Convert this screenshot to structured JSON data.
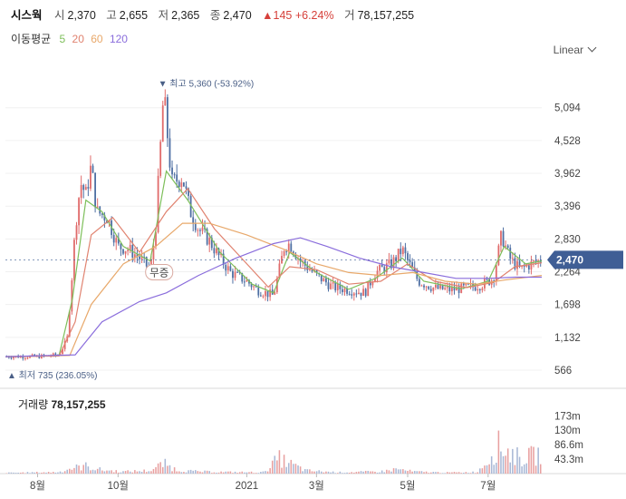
{
  "header": {
    "stock_name": "시스웍",
    "open_label": "시",
    "open": "2,370",
    "high_label": "고",
    "high": "2,655",
    "low_label": "저",
    "low": "2,365",
    "close_label": "종",
    "close": "2,470",
    "change": "▲145 +6.24%",
    "volume_label": "거",
    "volume": "78,157,255"
  },
  "ma_legend": {
    "label": "이동평균",
    "periods": [
      "5",
      "20",
      "60",
      "120"
    ],
    "colors": [
      "#7dbf5a",
      "#e0826f",
      "#e8a86a",
      "#8a6ddc"
    ]
  },
  "scale_selector": {
    "label": "Linear"
  },
  "colors": {
    "up": "#e06b6b",
    "down": "#4e6fa3",
    "current_price_tag": "#3f5e95",
    "volume": "#e8a0a0"
  },
  "chart_data": {
    "type": "candlestick",
    "y_ticks": [
      "5,094",
      "4,528",
      "3,962",
      "3,396",
      "2,830",
      "2,264",
      "1,698",
      "1,132",
      "566"
    ],
    "y_tick_values": [
      5094,
      4528,
      3962,
      3396,
      2830,
      2264,
      1698,
      1132,
      566
    ],
    "ylim": [
      300,
      5700
    ],
    "x_ticks": [
      "8월",
      "10월",
      "2021",
      "3월",
      "5월",
      "7월"
    ],
    "x_tick_positions": [
      0.06,
      0.21,
      0.45,
      0.58,
      0.75,
      0.9
    ],
    "current_price": 2470,
    "current_price_label": "2,470",
    "high_annotation": {
      "text": "최고 5,360 (-53.92%)",
      "value": 5360
    },
    "low_annotation": {
      "text": "최저 735 (236.05%)",
      "value": 735
    },
    "note_label": "무증",
    "volume_ticks": [
      "173m",
      "130m",
      "86.6m",
      "43.3m"
    ],
    "volume_tick_values": [
      173,
      130,
      86.6,
      43.3
    ],
    "volume_label": "거래량",
    "volume_value": "78,157,255",
    "price_path": [
      [
        0.0,
        800
      ],
      [
        0.06,
        800
      ],
      [
        0.1,
        830
      ],
      [
        0.115,
        1100
      ],
      [
        0.125,
        2300
      ],
      [
        0.13,
        3000
      ],
      [
        0.14,
        3800
      ],
      [
        0.15,
        3600
      ],
      [
        0.16,
        4100
      ],
      [
        0.17,
        3300
      ],
      [
        0.19,
        3200
      ],
      [
        0.21,
        2700
      ],
      [
        0.23,
        2650
      ],
      [
        0.25,
        2500
      ],
      [
        0.27,
        2300
      ],
      [
        0.28,
        3000
      ],
      [
        0.295,
        5360
      ],
      [
        0.31,
        3800
      ],
      [
        0.33,
        3900
      ],
      [
        0.345,
        3300
      ],
      [
        0.36,
        3000
      ],
      [
        0.38,
        2800
      ],
      [
        0.4,
        2500
      ],
      [
        0.42,
        2250
      ],
      [
        0.45,
        2100
      ],
      [
        0.47,
        1950
      ],
      [
        0.5,
        1850
      ],
      [
        0.52,
        2700
      ],
      [
        0.53,
        2750
      ],
      [
        0.55,
        2450
      ],
      [
        0.58,
        2200
      ],
      [
        0.61,
        2000
      ],
      [
        0.64,
        1950
      ],
      [
        0.67,
        1900
      ],
      [
        0.69,
        2250
      ],
      [
        0.72,
        2400
      ],
      [
        0.74,
        2650
      ],
      [
        0.75,
        2450
      ],
      [
        0.77,
        2100
      ],
      [
        0.8,
        1980
      ],
      [
        0.83,
        1950
      ],
      [
        0.87,
        2000
      ],
      [
        0.89,
        2050
      ],
      [
        0.91,
        2150
      ],
      [
        0.925,
        2900
      ],
      [
        0.94,
        2500
      ],
      [
        0.96,
        2300
      ],
      [
        0.98,
        2400
      ],
      [
        1.0,
        2470
      ]
    ],
    "volume_profile": [
      [
        0.0,
        3
      ],
      [
        0.1,
        6
      ],
      [
        0.12,
        20
      ],
      [
        0.15,
        30
      ],
      [
        0.18,
        14
      ],
      [
        0.22,
        8
      ],
      [
        0.27,
        12
      ],
      [
        0.295,
        40
      ],
      [
        0.32,
        14
      ],
      [
        0.36,
        8
      ],
      [
        0.42,
        6
      ],
      [
        0.48,
        5
      ],
      [
        0.51,
        60
      ],
      [
        0.53,
        40
      ],
      [
        0.56,
        12
      ],
      [
        0.62,
        5
      ],
      [
        0.7,
        8
      ],
      [
        0.73,
        18
      ],
      [
        0.76,
        8
      ],
      [
        0.82,
        4
      ],
      [
        0.88,
        6
      ],
      [
        0.92,
        110
      ],
      [
        0.96,
        60
      ],
      [
        1.0,
        78
      ]
    ],
    "ma_series": [
      {
        "period": "5",
        "points": [
          [
            0.0,
            800
          ],
          [
            0.1,
            820
          ],
          [
            0.125,
            1800
          ],
          [
            0.15,
            3500
          ],
          [
            0.18,
            3300
          ],
          [
            0.22,
            2700
          ],
          [
            0.27,
            2450
          ],
          [
            0.3,
            4000
          ],
          [
            0.34,
            3500
          ],
          [
            0.4,
            2600
          ],
          [
            0.46,
            2050
          ],
          [
            0.5,
            1900
          ],
          [
            0.53,
            2600
          ],
          [
            0.58,
            2250
          ],
          [
            0.64,
            1960
          ],
          [
            0.69,
            2150
          ],
          [
            0.74,
            2500
          ],
          [
            0.78,
            2100
          ],
          [
            0.85,
            1970
          ],
          [
            0.9,
            2100
          ],
          [
            0.93,
            2700
          ],
          [
            0.97,
            2400
          ],
          [
            1.0,
            2450
          ]
        ]
      },
      {
        "period": "20",
        "points": [
          [
            0.0,
            800
          ],
          [
            0.1,
            810
          ],
          [
            0.13,
            1400
          ],
          [
            0.16,
            2900
          ],
          [
            0.2,
            3200
          ],
          [
            0.25,
            2600
          ],
          [
            0.3,
            3300
          ],
          [
            0.34,
            3700
          ],
          [
            0.39,
            3000
          ],
          [
            0.44,
            2500
          ],
          [
            0.49,
            2000
          ],
          [
            0.53,
            2350
          ],
          [
            0.58,
            2300
          ],
          [
            0.64,
            2050
          ],
          [
            0.7,
            2100
          ],
          [
            0.75,
            2400
          ],
          [
            0.8,
            2100
          ],
          [
            0.86,
            1990
          ],
          [
            0.91,
            2080
          ],
          [
            0.95,
            2350
          ],
          [
            1.0,
            2420
          ]
        ]
      },
      {
        "period": "60",
        "points": [
          [
            0.0,
            800
          ],
          [
            0.12,
            820
          ],
          [
            0.16,
            1700
          ],
          [
            0.22,
            2400
          ],
          [
            0.28,
            2700
          ],
          [
            0.33,
            3100
          ],
          [
            0.38,
            3100
          ],
          [
            0.45,
            2900
          ],
          [
            0.52,
            2650
          ],
          [
            0.58,
            2400
          ],
          [
            0.64,
            2250
          ],
          [
            0.7,
            2200
          ],
          [
            0.76,
            2250
          ],
          [
            0.82,
            2100
          ],
          [
            0.88,
            2050
          ],
          [
            0.93,
            2120
          ],
          [
            1.0,
            2200
          ]
        ]
      },
      {
        "period": "120",
        "points": [
          [
            0.0,
            800
          ],
          [
            0.13,
            830
          ],
          [
            0.18,
            1400
          ],
          [
            0.25,
            1750
          ],
          [
            0.3,
            1900
          ],
          [
            0.36,
            2200
          ],
          [
            0.43,
            2500
          ],
          [
            0.5,
            2750
          ],
          [
            0.55,
            2850
          ],
          [
            0.6,
            2700
          ],
          [
            0.66,
            2500
          ],
          [
            0.72,
            2350
          ],
          [
            0.78,
            2250
          ],
          [
            0.84,
            2150
          ],
          [
            0.9,
            2150
          ],
          [
            0.95,
            2170
          ],
          [
            1.0,
            2170
          ]
        ]
      }
    ]
  }
}
